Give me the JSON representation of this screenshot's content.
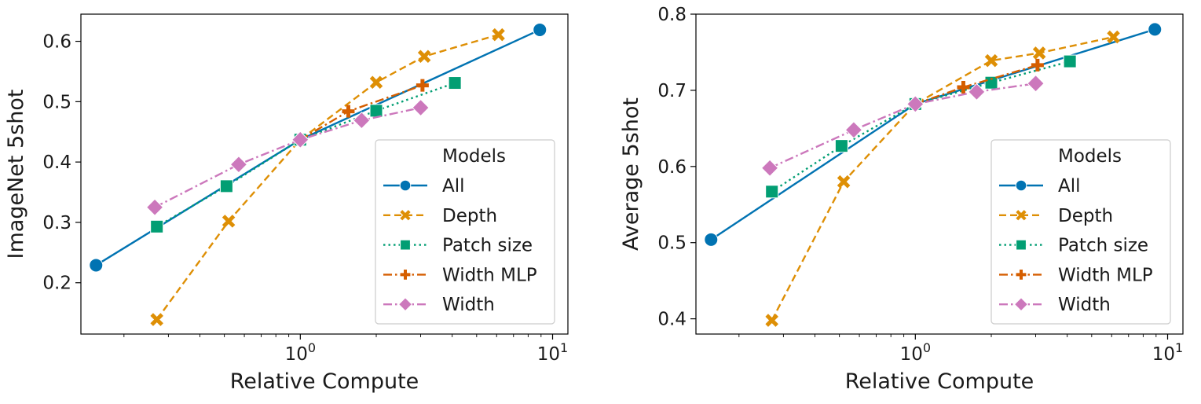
{
  "colors": {
    "All": "#0173b2",
    "Depth": "#de8f05",
    "Patch size": "#029e73",
    "Width MLP": "#d55e00",
    "Width": "#cc78bc"
  },
  "chart_data": [
    {
      "type": "line",
      "xscale": "log",
      "xlim": [
        0.135,
        11.5
      ],
      "ylim": [
        0.115,
        0.645
      ],
      "xlabel": "Relative Compute",
      "ylabel": "ImageNet 5shot",
      "xtick_labels": [
        {
          "value": 1,
          "base": "10",
          "exp": "0"
        },
        {
          "value": 10,
          "base": "10",
          "exp": "1"
        }
      ],
      "yticks": [
        {
          "value": 0.2,
          "label": "0.2"
        },
        {
          "value": 0.3,
          "label": "0.3"
        },
        {
          "value": 0.4,
          "label": "0.4"
        },
        {
          "value": 0.5,
          "label": "0.5"
        },
        {
          "value": 0.6,
          "label": "0.6"
        }
      ],
      "legend": {
        "title": "Models",
        "position": "lower-right"
      },
      "series": [
        {
          "name": "All",
          "marker": "circle",
          "dash": "solid",
          "x": [
            0.155,
            1.0,
            8.9
          ],
          "y": [
            0.229,
            0.437,
            0.619
          ]
        },
        {
          "name": "Depth",
          "marker": "x",
          "dash": "dashed",
          "x": [
            0.27,
            0.52,
            1.0,
            2.0,
            3.1,
            6.1
          ],
          "y": [
            0.139,
            0.302,
            0.437,
            0.532,
            0.575,
            0.611
          ]
        },
        {
          "name": "Patch size",
          "marker": "square",
          "dash": "dotted",
          "x": [
            0.27,
            0.51,
            1.0,
            2.0,
            4.1
          ],
          "y": [
            0.293,
            0.36,
            0.437,
            0.485,
            0.531
          ]
        },
        {
          "name": "Width MLP",
          "marker": "plus",
          "dash": "dashdot",
          "x": [
            1.0,
            1.55,
            3.05
          ],
          "y": [
            0.437,
            0.484,
            0.527
          ]
        },
        {
          "name": "Width",
          "marker": "diamond",
          "dash": "dashdot",
          "x": [
            0.265,
            0.57,
            1.0,
            1.75,
            3.0
          ],
          "y": [
            0.325,
            0.396,
            0.437,
            0.469,
            0.49
          ]
        }
      ]
    },
    {
      "type": "line",
      "xscale": "log",
      "xlim": [
        0.135,
        11.5
      ],
      "ylim": [
        0.38,
        0.8
      ],
      "xlabel": "Relative Compute",
      "ylabel": "Average 5shot",
      "xtick_labels": [
        {
          "value": 1,
          "base": "10",
          "exp": "0"
        },
        {
          "value": 10,
          "base": "10",
          "exp": "1"
        }
      ],
      "yticks": [
        {
          "value": 0.4,
          "label": "0.4"
        },
        {
          "value": 0.5,
          "label": "0.5"
        },
        {
          "value": 0.6,
          "label": "0.6"
        },
        {
          "value": 0.7,
          "label": "0.7"
        },
        {
          "value": 0.8,
          "label": "0.8"
        }
      ],
      "legend": {
        "title": "Models",
        "position": "lower-right"
      },
      "series": [
        {
          "name": "All",
          "marker": "circle",
          "dash": "solid",
          "x": [
            0.155,
            1.0,
            8.9
          ],
          "y": [
            0.504,
            0.682,
            0.78
          ]
        },
        {
          "name": "Depth",
          "marker": "x",
          "dash": "dashed",
          "x": [
            0.27,
            0.52,
            1.0,
            2.0,
            3.1,
            6.1
          ],
          "y": [
            0.398,
            0.58,
            0.682,
            0.739,
            0.749,
            0.77
          ]
        },
        {
          "name": "Patch size",
          "marker": "square",
          "dash": "dotted",
          "x": [
            0.27,
            0.51,
            1.0,
            2.0,
            4.1
          ],
          "y": [
            0.567,
            0.627,
            0.682,
            0.71,
            0.738
          ]
        },
        {
          "name": "Width MLP",
          "marker": "plus",
          "dash": "dashdot",
          "x": [
            1.0,
            1.55,
            3.05
          ],
          "y": [
            0.682,
            0.704,
            0.733
          ]
        },
        {
          "name": "Width",
          "marker": "diamond",
          "dash": "dashdot",
          "x": [
            0.265,
            0.57,
            1.0,
            1.75,
            3.0
          ],
          "y": [
            0.598,
            0.648,
            0.682,
            0.698,
            0.709
          ]
        }
      ]
    }
  ]
}
